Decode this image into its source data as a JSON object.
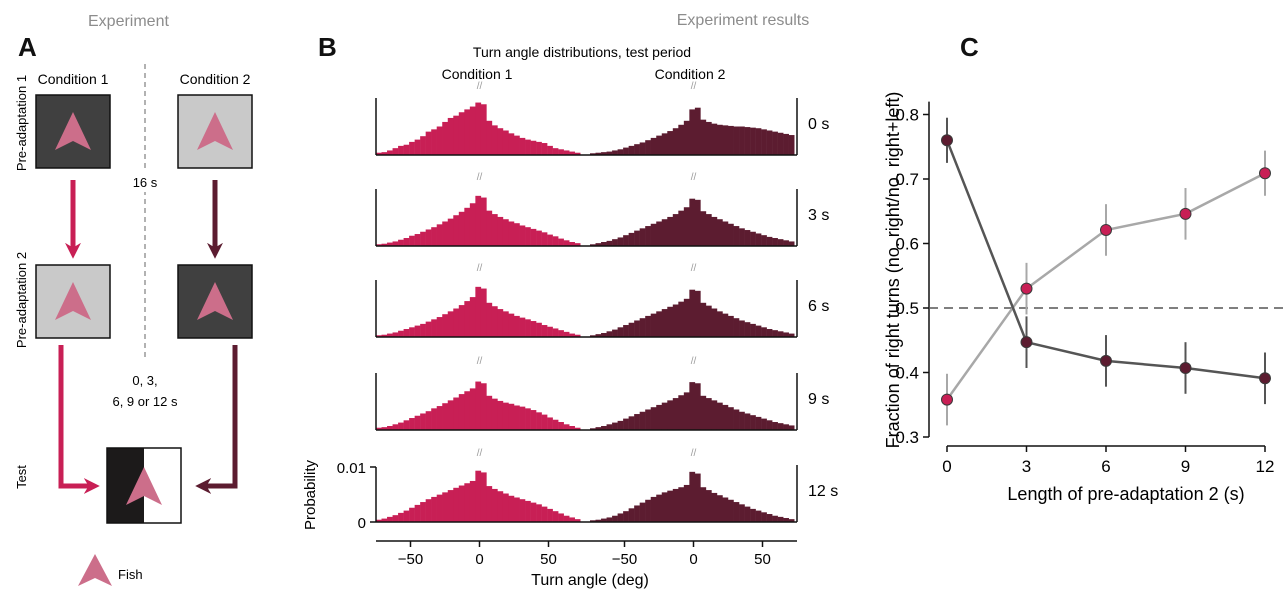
{
  "panel_a": {
    "letter": "A",
    "title": "Experiment",
    "condition_1_label": "Condition 1",
    "condition_2_label": "Condition 2",
    "row_pre1_label": "Pre-adaptation 1",
    "row_pre2_label": "Pre-adaptation 2",
    "row_test_label": "Test",
    "interval_1": "16 s",
    "interval_2_line1": "0, 3,",
    "interval_2_line2": "6, 9 or 12 s",
    "legend_label": "Fish"
  },
  "results_title": "Experiment results",
  "panel_b": {
    "letter": "B",
    "title": "Turn angle distributions, test period",
    "condition_1_label": "Condition 1",
    "condition_2_label": "Condition 2",
    "break_mark": "//",
    "ylabel": "Probability",
    "ytick_top": "0.01",
    "ytick_bottom": "0",
    "xlabel": "Turn angle (deg)",
    "xticks": [
      "−50",
      "0",
      "50"
    ],
    "row_labels": [
      "0 s",
      "3 s",
      "6 s",
      "9 s",
      "12 s"
    ]
  },
  "panel_c": {
    "letter": "C"
  },
  "colors": {
    "condition_1": "#c81f55",
    "condition_2": "#5c1c30",
    "dark_square": "#404040",
    "light_square": "#c9c9c9",
    "fish": "#cc6e8a",
    "line_condition_1": "#a8a8a8",
    "line_condition_2": "#555555"
  },
  "chart_data": [
    {
      "type": "bar",
      "title": "Turn angle distributions, test period",
      "xlabel": "Turn angle (deg)",
      "ylabel": "Probability",
      "xlim": [
        -75,
        75
      ],
      "ylim": [
        0,
        0.01
      ],
      "xticks": [
        -50,
        0,
        50
      ],
      "yticks": [
        0,
        0.01
      ],
      "grid": false,
      "bin_centers_deg": [
        -73,
        -69,
        -65,
        -61,
        -57,
        -53,
        -49,
        -45,
        -41,
        -37,
        -33,
        -29,
        -25,
        -21,
        -17,
        -13,
        -9,
        -5,
        -1,
        3,
        7,
        11,
        15,
        19,
        23,
        27,
        31,
        35,
        39,
        43,
        47,
        51,
        55,
        59,
        63,
        67,
        71
      ],
      "series": [
        {
          "name": "Condition 1",
          "row": "0 s",
          "values": [
            0.0004,
            0.0005,
            0.0008,
            0.0012,
            0.0016,
            0.0018,
            0.0023,
            0.0027,
            0.0033,
            0.0041,
            0.0045,
            0.005,
            0.0058,
            0.0065,
            0.0069,
            0.0075,
            0.008,
            0.0085,
            0.0092,
            0.0089,
            0.006,
            0.0052,
            0.0047,
            0.0043,
            0.0038,
            0.0034,
            0.003,
            0.0027,
            0.0025,
            0.0023,
            0.0021,
            0.0016,
            0.0012,
            0.001,
            0.0008,
            0.0006,
            0.0004
          ]
        },
        {
          "name": "Condition 2",
          "row": "0 s",
          "values": [
            0.0003,
            0.0004,
            0.0005,
            0.0006,
            0.0008,
            0.001,
            0.0013,
            0.0016,
            0.0019,
            0.0022,
            0.0026,
            0.003,
            0.0034,
            0.0038,
            0.0042,
            0.0047,
            0.0053,
            0.006,
            0.008,
            0.0083,
            0.0062,
            0.0058,
            0.0055,
            0.0053,
            0.0052,
            0.0051,
            0.005,
            0.005,
            0.0049,
            0.0048,
            0.0047,
            0.0045,
            0.0043,
            0.0041,
            0.0039,
            0.0037,
            0.0035
          ]
        },
        {
          "name": "Condition 1",
          "row": "3 s",
          "values": [
            0.0003,
            0.0004,
            0.0006,
            0.0008,
            0.0011,
            0.0014,
            0.0018,
            0.0021,
            0.0025,
            0.0029,
            0.0033,
            0.0038,
            0.0043,
            0.0048,
            0.0054,
            0.006,
            0.0067,
            0.0075,
            0.0088,
            0.0085,
            0.0062,
            0.0056,
            0.0051,
            0.0047,
            0.0043,
            0.004,
            0.0036,
            0.0033,
            0.003,
            0.0027,
            0.0024,
            0.002,
            0.0017,
            0.0013,
            0.001,
            0.0007,
            0.0005
          ]
        },
        {
          "name": "Condition 2",
          "row": "3 s",
          "values": [
            0.0003,
            0.0005,
            0.0007,
            0.0009,
            0.0012,
            0.0015,
            0.0019,
            0.0023,
            0.0027,
            0.0031,
            0.0035,
            0.0039,
            0.0043,
            0.0047,
            0.0051,
            0.0056,
            0.0062,
            0.0068,
            0.0083,
            0.0081,
            0.0061,
            0.0056,
            0.0051,
            0.0047,
            0.0043,
            0.0039,
            0.0035,
            0.0031,
            0.0028,
            0.0025,
            0.0022,
            0.0019,
            0.0016,
            0.0014,
            0.0012,
            0.001,
            0.0008
          ]
        },
        {
          "name": "Condition 1",
          "row": "6 s",
          "values": [
            0.0003,
            0.0004,
            0.0006,
            0.0008,
            0.0011,
            0.0014,
            0.0017,
            0.002,
            0.0023,
            0.0027,
            0.0031,
            0.0035,
            0.004,
            0.0045,
            0.005,
            0.0056,
            0.0063,
            0.007,
            0.0088,
            0.0085,
            0.006,
            0.0054,
            0.0049,
            0.0045,
            0.0041,
            0.0037,
            0.0034,
            0.0031,
            0.0028,
            0.0025,
            0.0021,
            0.0018,
            0.0015,
            0.0012,
            0.0009,
            0.0006,
            0.0004
          ]
        },
        {
          "name": "Condition 2",
          "row": "6 s",
          "values": [
            0.0003,
            0.0005,
            0.0007,
            0.001,
            0.0013,
            0.0017,
            0.0021,
            0.0025,
            0.0029,
            0.0033,
            0.0037,
            0.0041,
            0.0045,
            0.0049,
            0.0053,
            0.0057,
            0.0062,
            0.0067,
            0.0083,
            0.0081,
            0.006,
            0.0055,
            0.005,
            0.0045,
            0.0041,
            0.0037,
            0.0033,
            0.0029,
            0.0026,
            0.0023,
            0.002,
            0.0017,
            0.0014,
            0.0012,
            0.001,
            0.0008,
            0.0006
          ]
        },
        {
          "name": "Condition 1",
          "row": "9 s",
          "values": [
            0.0004,
            0.0005,
            0.0007,
            0.001,
            0.0013,
            0.0017,
            0.0021,
            0.0025,
            0.0029,
            0.0033,
            0.0038,
            0.0042,
            0.0047,
            0.0052,
            0.0057,
            0.0063,
            0.0068,
            0.0073,
            0.0085,
            0.0082,
            0.006,
            0.0055,
            0.0051,
            0.0048,
            0.0046,
            0.0043,
            0.0041,
            0.0038,
            0.0035,
            0.0031,
            0.0027,
            0.0022,
            0.0018,
            0.0014,
            0.001,
            0.0007,
            0.0004
          ]
        },
        {
          "name": "Condition 2",
          "row": "9 s",
          "values": [
            0.0003,
            0.0005,
            0.0007,
            0.001,
            0.0013,
            0.0016,
            0.002,
            0.0024,
            0.0028,
            0.0032,
            0.0036,
            0.004,
            0.0044,
            0.0048,
            0.0052,
            0.0056,
            0.0061,
            0.0066,
            0.0084,
            0.0082,
            0.006,
            0.0056,
            0.0052,
            0.0048,
            0.0044,
            0.004,
            0.0036,
            0.0032,
            0.0029,
            0.0026,
            0.0023,
            0.002,
            0.0017,
            0.0014,
            0.0012,
            0.001,
            0.0008
          ]
        },
        {
          "name": "Condition 1",
          "row": "12 s",
          "values": [
            0.0004,
            0.0006,
            0.0009,
            0.0012,
            0.0016,
            0.002,
            0.0025,
            0.003,
            0.0035,
            0.004,
            0.0044,
            0.0048,
            0.0052,
            0.0056,
            0.006,
            0.0064,
            0.0068,
            0.0072,
            0.009,
            0.0087,
            0.0063,
            0.0058,
            0.0054,
            0.005,
            0.0046,
            0.0043,
            0.004,
            0.0037,
            0.0034,
            0.0031,
            0.0027,
            0.0023,
            0.0019,
            0.0015,
            0.0011,
            0.0008,
            0.0005
          ]
        },
        {
          "name": "Condition 2",
          "row": "12 s",
          "values": [
            0.0003,
            0.0004,
            0.0006,
            0.0008,
            0.0011,
            0.0015,
            0.0019,
            0.0024,
            0.0029,
            0.0034,
            0.0039,
            0.0044,
            0.0048,
            0.0052,
            0.0055,
            0.0058,
            0.0061,
            0.0065,
            0.0088,
            0.0085,
            0.0061,
            0.0056,
            0.0051,
            0.0047,
            0.0043,
            0.0039,
            0.0035,
            0.0031,
            0.0027,
            0.0023,
            0.002,
            0.0017,
            0.0014,
            0.0011,
            0.0009,
            0.0007,
            0.0005
          ]
        }
      ]
    },
    {
      "type": "line",
      "xlabel": "Length of pre-adaptation 2 (s)",
      "ylabel": "Fraction of right turns (no. right/no. right+left)",
      "x": [
        0,
        3,
        6,
        9,
        12
      ],
      "xticks": [
        0,
        3,
        6,
        9,
        12
      ],
      "yticks": [
        0.3,
        0.4,
        0.5,
        0.6,
        0.7,
        0.8
      ],
      "ylim": [
        0.3,
        0.82
      ],
      "reference_line_y": 0.5,
      "grid": false,
      "series": [
        {
          "condition": 1,
          "values": [
            0.358,
            0.53,
            0.621,
            0.646,
            0.709
          ],
          "error": [
            0.04,
            0.04,
            0.04,
            0.04,
            0.035
          ],
          "marker_color": "#c81f55",
          "line_color": "#a8a8a8"
        },
        {
          "condition": 2,
          "values": [
            0.76,
            0.447,
            0.418,
            0.407,
            0.391
          ],
          "error": [
            0.035,
            0.04,
            0.04,
            0.04,
            0.04
          ],
          "marker_color": "#5c1c30",
          "line_color": "#555555"
        }
      ]
    }
  ]
}
